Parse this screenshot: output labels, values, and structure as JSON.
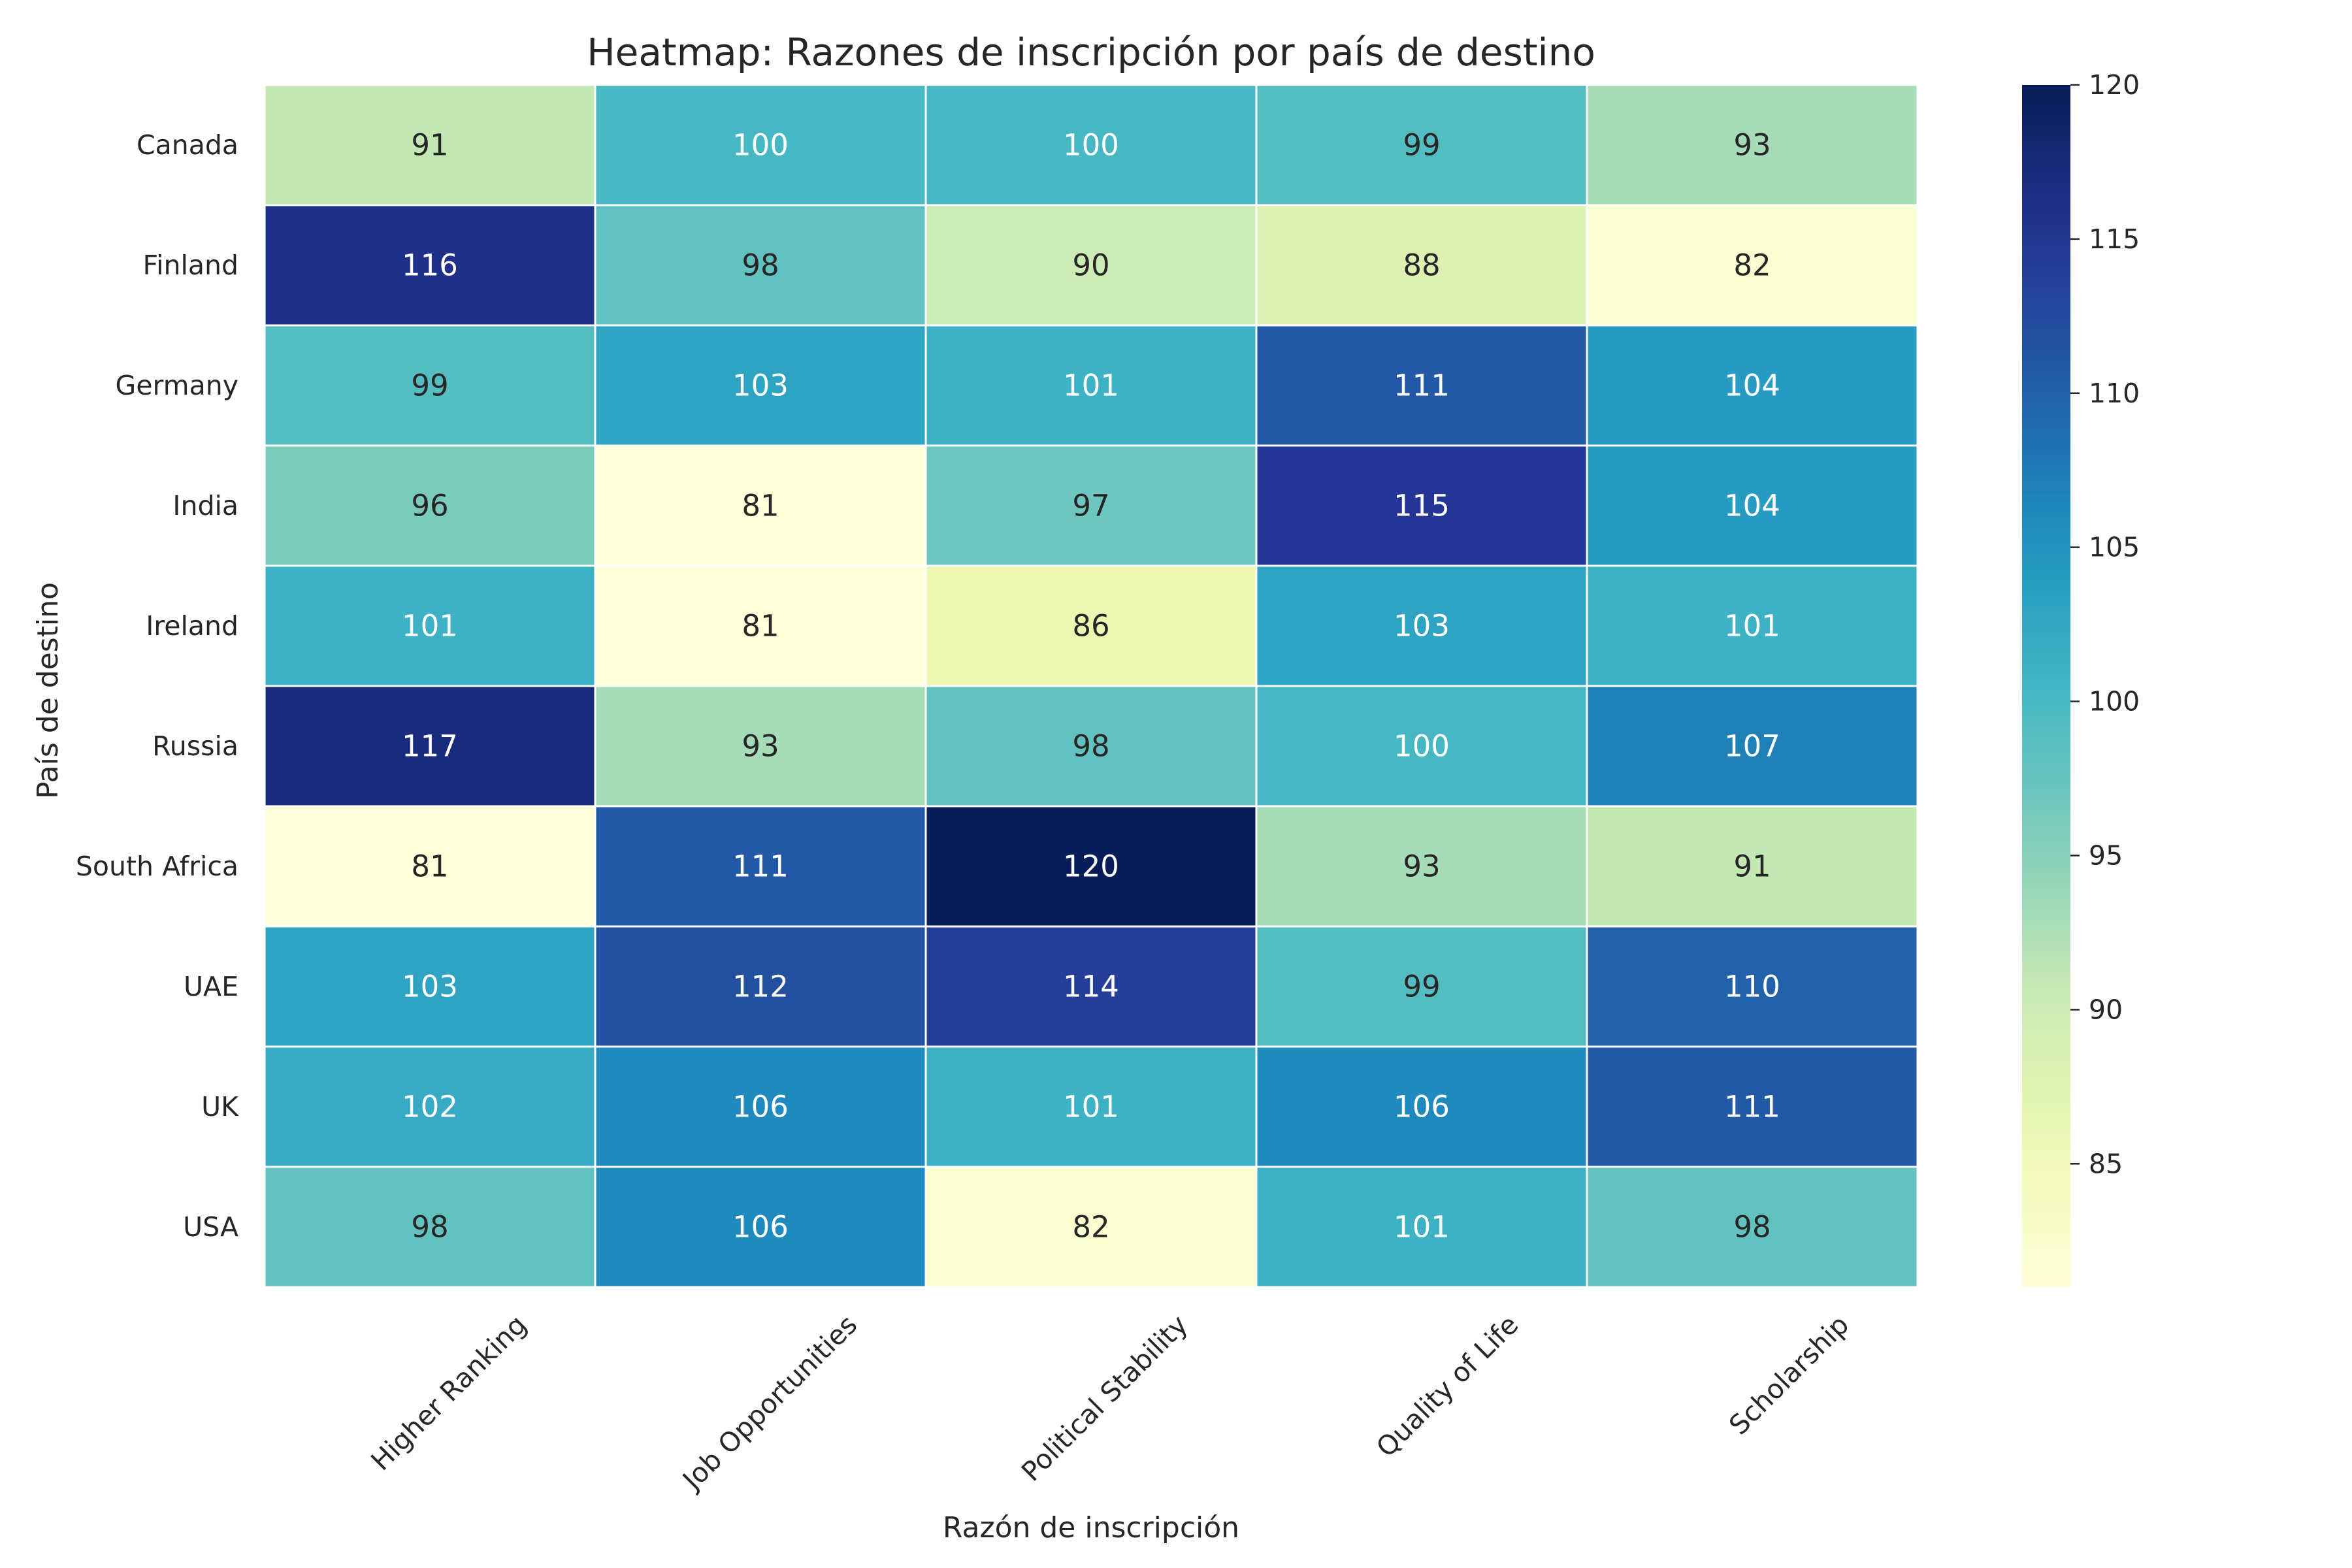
{
  "chart_data": {
    "type": "heatmap",
    "title": "Heatmap: Razones de inscripción por país de destino",
    "xlabel": "Razón de inscripción",
    "ylabel": "País de destino",
    "x_categories": [
      "Higher Ranking",
      "Job Opportunities",
      "Political Stability",
      "Quality of Life",
      "Scholarship"
    ],
    "y_categories": [
      "Canada",
      "Finland",
      "Germany",
      "India",
      "Ireland",
      "Russia",
      "South Africa",
      "UAE",
      "UK",
      "USA"
    ],
    "values": [
      [
        91,
        100,
        100,
        99,
        93
      ],
      [
        116,
        98,
        90,
        88,
        82
      ],
      [
        99,
        103,
        101,
        111,
        104
      ],
      [
        96,
        81,
        97,
        115,
        104
      ],
      [
        101,
        81,
        86,
        103,
        101
      ],
      [
        117,
        93,
        98,
        100,
        107
      ],
      [
        81,
        111,
        120,
        93,
        91
      ],
      [
        103,
        112,
        114,
        99,
        110
      ],
      [
        102,
        106,
        101,
        106,
        111
      ],
      [
        98,
        106,
        82,
        101,
        98
      ]
    ],
    "colormap": "YlGnBu",
    "color_range": [
      81,
      120
    ],
    "colorbar_ticks": [
      85,
      90,
      95,
      100,
      105,
      110,
      115,
      120
    ],
    "annotated": true,
    "grid": false
  }
}
